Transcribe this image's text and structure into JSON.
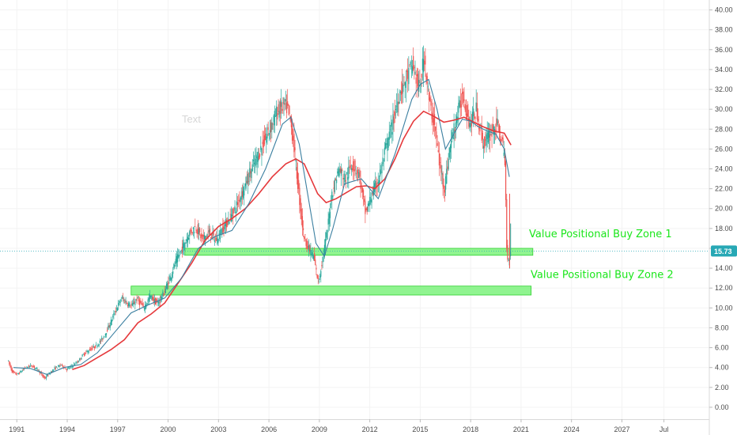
{
  "chart_data": {
    "type": "candlestick",
    "watermark_text": "Text",
    "x_axis": {
      "ticks": [
        "1991",
        "1994",
        "1997",
        "2000",
        "2003",
        "2006",
        "2009",
        "2012",
        "2015",
        "2018",
        "2021",
        "2024",
        "2027",
        "Jul"
      ],
      "range_years": [
        1990,
        2032.2
      ]
    },
    "y_axis": {
      "position": "right",
      "ticks": [
        "0.00",
        "2.00",
        "4.00",
        "6.00",
        "8.00",
        "10.00",
        "12.00",
        "14.00",
        "16.00",
        "18.00",
        "20.00",
        "22.00",
        "24.00",
        "26.00",
        "28.00",
        "30.00",
        "32.00",
        "34.00",
        "36.00",
        "38.00",
        "40.00"
      ],
      "range": [
        -1.2,
        41.0
      ]
    },
    "last_price": "15.73",
    "zones": [
      {
        "label": "Value Positional Buy Zone 1",
        "low": 15.3,
        "high": 16.0,
        "from_year": 2001.0,
        "to_year": 2021.7
      },
      {
        "label": "Value Positional Buy Zone 2",
        "low": 11.3,
        "high": 12.2,
        "from_year": 1997.8,
        "to_year": 2021.6
      }
    ],
    "price_series": {
      "x": [
        1990.5,
        1990.8,
        1991.1,
        1991.5,
        1991.9,
        1992.3,
        1992.7,
        1993.0,
        1993.3,
        1993.7,
        1994.0,
        1994.3,
        1994.7,
        1995.0,
        1995.4,
        1995.8,
        1996.2,
        1996.6,
        1997.0,
        1997.3,
        1997.6,
        1997.9,
        1998.2,
        1998.6,
        1999.0,
        1999.4,
        1999.8,
        2000.2,
        2000.5,
        2000.9,
        2001.3,
        2001.7,
        2002.1,
        2002.5,
        2002.9,
        2003.3,
        2003.7,
        2004.1,
        2004.5,
        2004.9,
        2005.3,
        2005.7,
        2006.1,
        2006.5,
        2006.9,
        2007.2,
        2007.5,
        2007.8,
        2008.1,
        2008.4,
        2008.7,
        2009.0,
        2009.2,
        2009.5,
        2009.8,
        2010.2,
        2010.6,
        2011.0,
        2011.4,
        2011.8,
        2012.2,
        2012.6,
        2013.0,
        2013.4,
        2013.8,
        2014.2,
        2014.6,
        2015.0,
        2015.3,
        2015.6,
        2015.9,
        2016.2,
        2016.5,
        2016.8,
        2017.2,
        2017.6,
        2018.0,
        2018.4,
        2018.8,
        2019.2,
        2019.6,
        2019.9,
        2020.1,
        2020.2,
        2020.3,
        2020.4
      ],
      "values": [
        4.8,
        3.5,
        3.3,
        3.9,
        4.2,
        3.8,
        2.9,
        3.4,
        3.9,
        4.3,
        3.8,
        4.1,
        4.6,
        5.3,
        5.8,
        6.2,
        7.0,
        8.4,
        10.0,
        11.0,
        10.5,
        10.2,
        10.9,
        10.0,
        11.2,
        10.4,
        11.5,
        13.2,
        14.6,
        16.0,
        17.5,
        18.2,
        16.9,
        17.6,
        16.8,
        18.0,
        19.0,
        20.2,
        21.8,
        23.5,
        25.0,
        26.5,
        28.0,
        29.6,
        30.4,
        30.0,
        27.0,
        22.0,
        17.5,
        16.0,
        15.2,
        12.5,
        14.5,
        17.5,
        21.5,
        24.0,
        23.0,
        24.5,
        23.5,
        19.5,
        21.5,
        23.0,
        26.0,
        28.5,
        31.5,
        33.0,
        34.5,
        32.0,
        35.5,
        30.5,
        28.5,
        24.5,
        22.0,
        26.0,
        29.0,
        31.5,
        28.5,
        30.0,
        26.5,
        27.5,
        28.5,
        27.0,
        24.5,
        16.0,
        14.5,
        15.7
      ]
    },
    "ma_fast": {
      "x": [
        1990.8,
        1991.8,
        1992.8,
        1993.8,
        1994.8,
        1995.8,
        1996.8,
        1997.8,
        1998.8,
        1999.8,
        2000.8,
        2001.8,
        2002.8,
        2003.8,
        2004.8,
        2005.8,
        2006.8,
        2007.3,
        2007.8,
        2008.3,
        2008.8,
        2009.3,
        2009.8,
        2010.5,
        2011.5,
        2012.5,
        2013.5,
        2014.5,
        2015.0,
        2015.5,
        2016.0,
        2016.5,
        2017.0,
        2017.5,
        2018.0,
        2018.5,
        2019.0,
        2019.5,
        2020.0,
        2020.3
      ],
      "values": [
        4.0,
        3.9,
        3.3,
        4.0,
        4.3,
        5.5,
        7.5,
        9.5,
        10.3,
        11.0,
        13.0,
        16.0,
        17.2,
        17.8,
        20.5,
        24.0,
        28.5,
        29.2,
        26.5,
        21.5,
        16.5,
        15.2,
        18.0,
        22.5,
        23.0,
        21.0,
        25.5,
        31.0,
        32.5,
        33.0,
        30.0,
        26.0,
        27.5,
        29.0,
        28.8,
        28.2,
        27.8,
        27.5,
        26.0,
        23.2
      ]
    },
    "ma_slow": {
      "x": [
        1994.3,
        1995.0,
        1995.8,
        1996.6,
        1997.4,
        1998.2,
        1999.0,
        1999.8,
        2000.6,
        2001.4,
        2002.2,
        2003.0,
        2003.8,
        2004.6,
        2005.4,
        2006.2,
        2007.0,
        2007.6,
        2008.1,
        2008.5,
        2008.9,
        2009.4,
        2010.0,
        2010.6,
        2011.2,
        2011.8,
        2012.3,
        2012.9,
        2013.5,
        2014.0,
        2014.6,
        2015.2,
        2015.8,
        2016.4,
        2017.0,
        2017.6,
        2018.2,
        2018.8,
        2019.4,
        2020.0,
        2020.4
      ],
      "values": [
        3.8,
        4.2,
        5.0,
        5.8,
        6.8,
        8.5,
        9.4,
        10.5,
        12.5,
        14.5,
        16.8,
        18.2,
        19.0,
        20.0,
        21.5,
        23.2,
        24.5,
        25.0,
        24.5,
        23.0,
        21.5,
        20.6,
        21.0,
        21.6,
        22.2,
        22.3,
        22.0,
        23.0,
        25.0,
        27.0,
        28.8,
        29.8,
        29.3,
        28.7,
        28.9,
        29.2,
        28.7,
        28.2,
        27.8,
        27.6,
        26.4
      ]
    }
  }
}
